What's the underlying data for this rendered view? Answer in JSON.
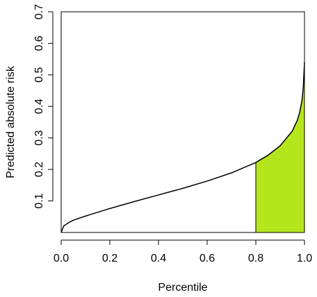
{
  "chart_data": {
    "type": "area",
    "xlabel": "Percentile",
    "ylabel": "Predicted absolute risk",
    "xlim": [
      0,
      1
    ],
    "ylim": [
      0,
      0.7
    ],
    "xticks": [
      "0.0",
      "0.2",
      "0.4",
      "0.6",
      "0.8",
      "1.0"
    ],
    "yticks": [
      "0.1",
      "0.2",
      "0.3",
      "0.4",
      "0.5",
      "0.6",
      "0.7"
    ],
    "x": [
      0,
      0.01,
      0.03,
      0.05,
      0.1,
      0.2,
      0.3,
      0.4,
      0.5,
      0.6,
      0.7,
      0.8,
      0.85,
      0.9,
      0.95,
      0.97,
      0.98,
      0.99,
      0.995,
      1.0
    ],
    "y": [
      0.0,
      0.02,
      0.031,
      0.039,
      0.052,
      0.076,
      0.098,
      0.119,
      0.14,
      0.163,
      0.189,
      0.222,
      0.245,
      0.275,
      0.322,
      0.355,
      0.38,
      0.42,
      0.46,
      0.54
    ],
    "shade_from": 0.8,
    "line_color": "#000000",
    "shade_color": "#b5e61d"
  }
}
